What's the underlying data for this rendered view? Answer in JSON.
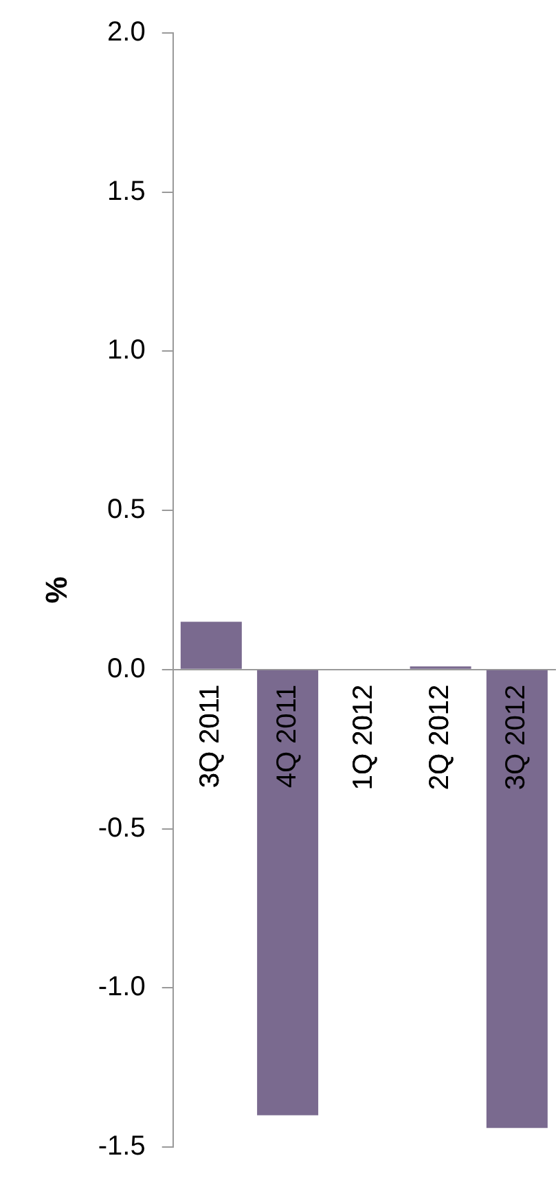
{
  "chart_data": {
    "type": "bar",
    "ylabel": "%",
    "categories": [
      "3Q 2011",
      "4Q 2011",
      "1Q 2012",
      "2Q 2012",
      "3Q 2012"
    ],
    "values": [
      0.15,
      -1.4,
      0,
      0.01,
      -1.44
    ],
    "color": "#7a6a8f",
    "ylim": [
      -1.5,
      2.0
    ],
    "yticks": [
      {
        "value": -1.5,
        "label": "-1.5"
      },
      {
        "value": -1,
        "label": "-1.0"
      },
      {
        "value": -0.5,
        "label": "-0.5"
      },
      {
        "value": 0,
        "label": "0.0"
      },
      {
        "value": 0.5,
        "label": "0.5"
      },
      {
        "value": 1,
        "label": "1.0"
      },
      {
        "value": 1.5,
        "label": "1.5"
      },
      {
        "value": 2,
        "label": "2.0"
      }
    ],
    "grid": false,
    "legend": false
  }
}
